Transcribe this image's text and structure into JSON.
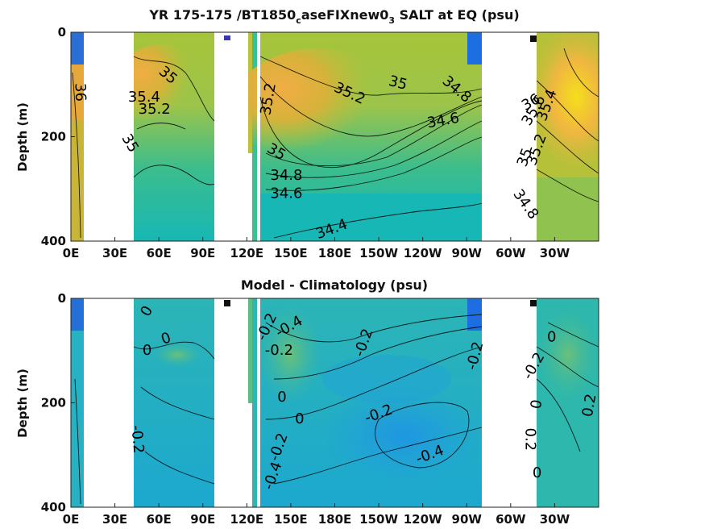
{
  "chart_data": [
    {
      "type": "heatmap",
      "title_parts": [
        "YR 175-175 /BT1850",
        "c",
        "aseFIXnew0",
        "3",
        " SALT at EQ (psu)"
      ],
      "ylabel": "Depth (m)",
      "xlabel": "",
      "x_tick_labels": [
        "0E",
        "30E",
        "60E",
        "90E",
        "120E",
        "150E",
        "180E",
        "150W",
        "120W",
        "90W",
        "60W",
        "30W"
      ],
      "x_ticks_lon": [
        0,
        30,
        60,
        90,
        120,
        150,
        180,
        210,
        240,
        270,
        300,
        330
      ],
      "y_tick_labels": [
        "0",
        "200",
        "400"
      ],
      "y_ticks": [
        0,
        200,
        400
      ],
      "xlim": [
        0,
        360
      ],
      "ylim": [
        400,
        0
      ],
      "grid": false,
      "colormap": "parula",
      "contour_labels": [
        {
          "text": "36",
          "lon": 6,
          "depth": 115,
          "rot": 88
        },
        {
          "text": "35.4",
          "lon": 50,
          "depth": 125,
          "rot": 0
        },
        {
          "text": "35.2",
          "lon": 57,
          "depth": 148,
          "rot": 0
        },
        {
          "text": "35",
          "lon": 66,
          "depth": 83,
          "rot": 40
        },
        {
          "text": "35",
          "lon": 40,
          "depth": 213,
          "rot": 60
        },
        {
          "text": "35.2",
          "lon": 135,
          "depth": 128,
          "rot": -80
        },
        {
          "text": "35.2",
          "lon": 190,
          "depth": 118,
          "rot": 25
        },
        {
          "text": "35",
          "lon": 223,
          "depth": 98,
          "rot": 15
        },
        {
          "text": "34.8",
          "lon": 263,
          "depth": 110,
          "rot": 40
        },
        {
          "text": "34.6",
          "lon": 254,
          "depth": 170,
          "rot": -10
        },
        {
          "text": "35",
          "lon": 140,
          "depth": 230,
          "rot": 30
        },
        {
          "text": "34.8",
          "lon": 147,
          "depth": 275,
          "rot": 0
        },
        {
          "text": "34.6",
          "lon": 147,
          "depth": 310,
          "rot": 0
        },
        {
          "text": "34.4",
          "lon": 178,
          "depth": 378,
          "rot": -20
        },
        {
          "text": "36",
          "lon": 314,
          "depth": 135,
          "rot": -30
        },
        {
          "text": "35.6",
          "lon": 316,
          "depth": 150,
          "rot": -60
        },
        {
          "text": "35.4",
          "lon": 325,
          "depth": 140,
          "rot": -70
        },
        {
          "text": "35.2",
          "lon": 318,
          "depth": 225,
          "rot": -70
        },
        {
          "text": "35",
          "lon": 310,
          "depth": 240,
          "rot": -70
        },
        {
          "text": "34.8",
          "lon": 310,
          "depth": 330,
          "rot": 55
        }
      ]
    },
    {
      "type": "heatmap",
      "title": "Model - Climatology (psu)",
      "ylabel": "Depth (m)",
      "xlabel": "",
      "x_tick_labels": [
        "0E",
        "30E",
        "60E",
        "90E",
        "120E",
        "150E",
        "180E",
        "150W",
        "120W",
        "90W",
        "60W",
        "30W"
      ],
      "x_ticks_lon": [
        0,
        30,
        60,
        90,
        120,
        150,
        180,
        210,
        240,
        270,
        300,
        330
      ],
      "y_tick_labels": [
        "0",
        "200",
        "400"
      ],
      "y_ticks": [
        0,
        200,
        400
      ],
      "xlim": [
        0,
        360
      ],
      "ylim": [
        400,
        0
      ],
      "grid": false,
      "colormap": "parula",
      "contour_labels": [
        {
          "text": "0",
          "lon": 52,
          "depth": 25,
          "rot": -60
        },
        {
          "text": "0",
          "lon": 65,
          "depth": 78,
          "rot": -20
        },
        {
          "text": "0",
          "lon": 52,
          "depth": 100,
          "rot": 0
        },
        {
          "text": "-0.2",
          "lon": 45,
          "depth": 270,
          "rot": 85
        },
        {
          "text": "-0.2",
          "lon": 134,
          "depth": 55,
          "rot": -65
        },
        {
          "text": "-0.4",
          "lon": 149,
          "depth": 55,
          "rot": -30
        },
        {
          "text": "-0.2",
          "lon": 142,
          "depth": 100,
          "rot": 0
        },
        {
          "text": "0",
          "lon": 144,
          "depth": 190,
          "rot": 0
        },
        {
          "text": "0",
          "lon": 156,
          "depth": 232,
          "rot": 0
        },
        {
          "text": "-0.2",
          "lon": 142,
          "depth": 285,
          "rot": -70
        },
        {
          "text": "-0.4",
          "lon": 138,
          "depth": 340,
          "rot": -70
        },
        {
          "text": "-0.2",
          "lon": 200,
          "depth": 85,
          "rot": -70
        },
        {
          "text": "-0.2",
          "lon": 210,
          "depth": 222,
          "rot": -20
        },
        {
          "text": "-0.4",
          "lon": 245,
          "depth": 300,
          "rot": -20
        },
        {
          "text": "-0.2",
          "lon": 276,
          "depth": 110,
          "rot": -75
        },
        {
          "text": "-0.2",
          "lon": 316,
          "depth": 130,
          "rot": -60
        },
        {
          "text": "0",
          "lon": 328,
          "depth": 75,
          "rot": 0
        },
        {
          "text": "0",
          "lon": 318,
          "depth": 203,
          "rot": -80
        },
        {
          "text": "0.2",
          "lon": 354,
          "depth": 205,
          "rot": -80
        },
        {
          "text": "0.2",
          "lon": 313,
          "depth": 270,
          "rot": 90
        },
        {
          "text": "0",
          "lon": 318,
          "depth": 335,
          "rot": 0
        }
      ]
    }
  ]
}
